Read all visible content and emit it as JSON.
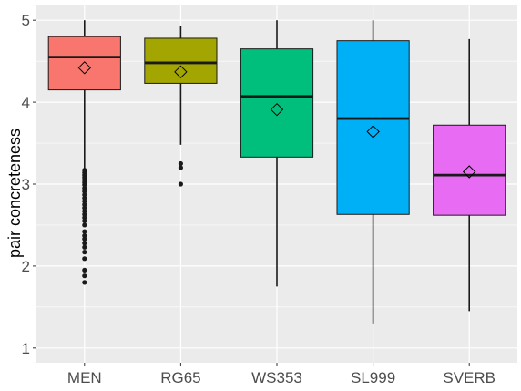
{
  "chart_data": {
    "type": "box",
    "title": "",
    "xlabel": "",
    "ylabel": "pair concreteness",
    "ylim": [
      0.82,
      5.18
    ],
    "yticks": [
      "1",
      "2",
      "3",
      "4",
      "5"
    ],
    "grid": true,
    "legend": "none",
    "categories": [
      "MEN",
      "RG65",
      "WS353",
      "SL999",
      "SVERB"
    ],
    "series": [
      {
        "category": "MEN",
        "color": "#F8766D",
        "whisker_low": 3.18,
        "q1": 4.15,
        "median": 4.55,
        "q3": 4.8,
        "whisker_high": 5.0,
        "mean": 4.42,
        "outliers": [
          3.17,
          3.14,
          3.11,
          3.08,
          3.05,
          3.02,
          2.99,
          2.95,
          2.91,
          2.87,
          2.83,
          2.79,
          2.75,
          2.71,
          2.67,
          2.63,
          2.59,
          2.55,
          2.5,
          2.42,
          2.37,
          2.33,
          2.28,
          2.23,
          2.17,
          2.09,
          1.95,
          1.88,
          1.8
        ]
      },
      {
        "category": "RG65",
        "color": "#A3A500",
        "whisker_low": 3.48,
        "q1": 4.23,
        "median": 4.48,
        "q3": 4.78,
        "whisker_high": 4.93,
        "mean": 4.37,
        "outliers": [
          3.25,
          3.2,
          3.0
        ]
      },
      {
        "category": "WS353",
        "color": "#00BF7D",
        "whisker_low": 1.75,
        "q1": 3.33,
        "median": 4.07,
        "q3": 4.65,
        "whisker_high": 5.0,
        "mean": 3.91,
        "outliers": []
      },
      {
        "category": "SL999",
        "color": "#00B0F6",
        "whisker_low": 1.3,
        "q1": 2.63,
        "median": 3.8,
        "q3": 4.75,
        "whisker_high": 5.0,
        "mean": 3.64,
        "outliers": []
      },
      {
        "category": "SVERB",
        "color": "#E76BF3",
        "whisker_low": 1.45,
        "q1": 2.62,
        "median": 3.11,
        "q3": 3.72,
        "whisker_high": 4.77,
        "mean": 3.15,
        "outliers": []
      }
    ]
  }
}
